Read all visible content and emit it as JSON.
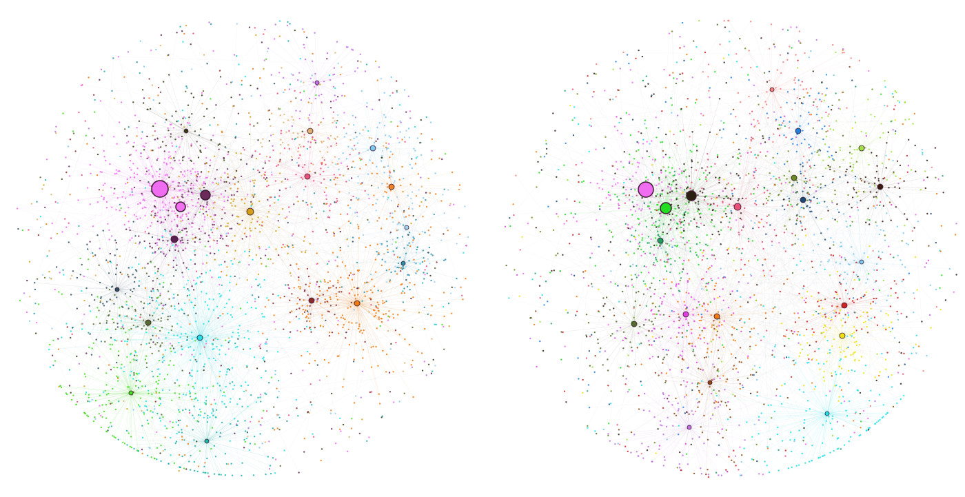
{
  "background": "#ffffff",
  "edge_color": "#9a9a9a",
  "hub_stroke": "#3a1a30",
  "panels": [
    {
      "id": "left-network",
      "cluster_colors": [
        "#f06cf0",
        "#f070f0",
        "#6b2a5a",
        "#d4a017",
        "#e8507a",
        "#f08020",
        "#7ec8f0",
        "#5a2050",
        "#2a8fa8",
        "#20e0e8",
        "#556b2f",
        "#44dd22",
        "#f07a10",
        "#8b2a2a",
        "#2f4f5f",
        "#20b2aa",
        "#e0b070",
        "#3a3a1a",
        "#a0d0f0",
        "#c070e0"
      ]
    },
    {
      "id": "right-network",
      "cluster_colors": [
        "#f06cf0",
        "#22dd22",
        "#2a2010",
        "#2080e0",
        "#1a4a7a",
        "#3a1a10",
        "#6b8e23",
        "#cc2222",
        "#f0e010",
        "#e040e0",
        "#f07a10",
        "#20a060",
        "#20e0e8",
        "#e8507a",
        "#8b4513",
        "#7ec8f0",
        "#a0e040",
        "#556b2f",
        "#f08080",
        "#c070e0"
      ]
    }
  ]
}
